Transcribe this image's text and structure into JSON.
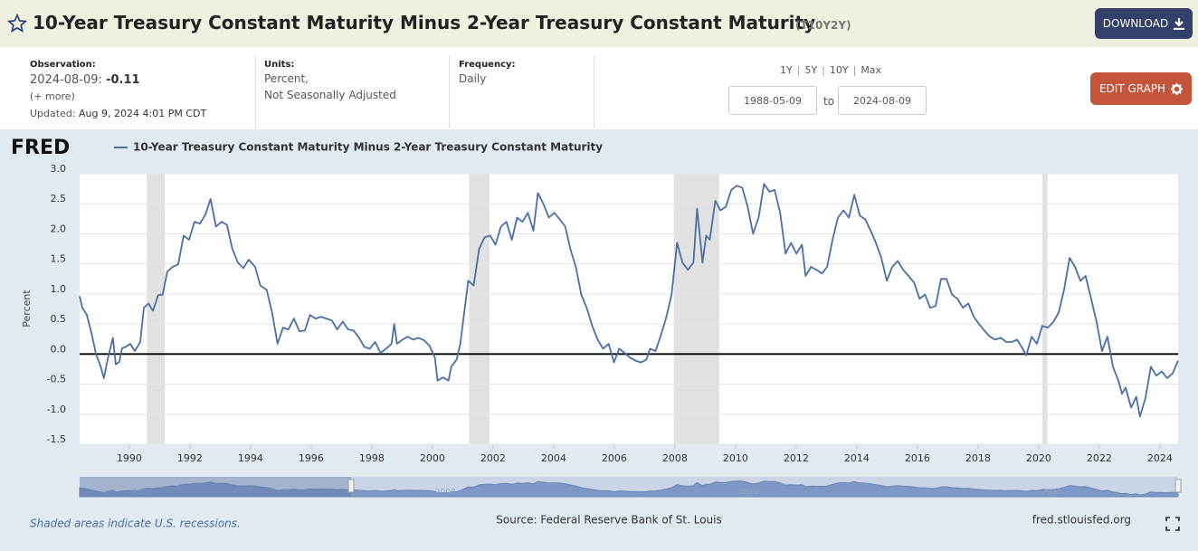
{
  "header": {
    "title": "10-Year Treasury Constant Maturity Minus 2-Year Treasury Constant Maturity",
    "code": "(T10Y2Y)",
    "download": "DOWNLOAD"
  },
  "info": {
    "observation_label": "Observation:",
    "observation_date": "2024-08-09:",
    "observation_value": "-0.11",
    "more": "(+ more)",
    "updated_label": "Updated:",
    "updated": "Aug 9, 2024 4:01 PM CDT",
    "units_label": "Units:",
    "units_1": "Percent,",
    "units_2": "Not Seasonally Adjusted",
    "frequency_label": "Frequency:",
    "frequency": "Daily",
    "ranges": [
      "1Y",
      "5Y",
      "10Y",
      "Max"
    ],
    "start_date": "1988-05-09",
    "to": "to",
    "end_date": "2024-08-09",
    "edit": "EDIT GRAPH"
  },
  "chart_data": {
    "type": "line",
    "logo": "FRED",
    "y_label": "Percent",
    "x": [
      1988.36,
      1988.45,
      1988.6,
      1988.75,
      1988.9,
      1989.05,
      1989.16,
      1989.28,
      1989.46,
      1989.55,
      1989.67,
      1989.76,
      1989.88,
      1990.03,
      1990.18,
      1990.36,
      1990.48,
      1990.63,
      1990.78,
      1990.95,
      1991.1,
      1991.25,
      1991.43,
      1991.61,
      1991.79,
      1991.97,
      1992.15,
      1992.33,
      1992.51,
      1992.68,
      1992.86,
      1993.04,
      1993.22,
      1993.4,
      1993.58,
      1993.76,
      1993.94,
      1994.15,
      1994.32,
      1994.53,
      1994.71,
      1994.89,
      1995.07,
      1995.25,
      1995.43,
      1995.61,
      1995.79,
      1995.96,
      1996.14,
      1996.32,
      1996.5,
      1996.68,
      1996.86,
      1997.04,
      1997.22,
      1997.4,
      1997.58,
      1997.75,
      1997.93,
      1998.11,
      1998.29,
      1998.47,
      1998.65,
      1998.74,
      1998.83,
      1999.01,
      1999.19,
      1999.36,
      1999.54,
      1999.72,
      1999.9,
      2000.08,
      2000.17,
      2000.35,
      2000.53,
      2000.62,
      2000.8,
      2000.92,
      2001.01,
      2001.18,
      2001.36,
      2001.54,
      2001.72,
      2001.9,
      2002.08,
      2002.26,
      2002.44,
      2002.62,
      2002.79,
      2002.97,
      2003.15,
      2003.33,
      2003.48,
      2003.66,
      2003.84,
      2004.02,
      2004.2,
      2004.38,
      2004.55,
      2004.73,
      2004.91,
      2005.09,
      2005.27,
      2005.45,
      2005.63,
      2005.81,
      2005.99,
      2006.16,
      2006.34,
      2006.52,
      2006.7,
      2006.88,
      2007.06,
      2007.18,
      2007.36,
      2007.54,
      2007.72,
      2007.89,
      2008.07,
      2008.25,
      2008.43,
      2008.61,
      2008.73,
      2008.91,
      2009.03,
      2009.15,
      2009.33,
      2009.5,
      2009.68,
      2009.86,
      2010.04,
      2010.22,
      2010.4,
      2010.58,
      2010.76,
      2010.94,
      2011.12,
      2011.29,
      2011.47,
      2011.65,
      2011.83,
      2012.01,
      2012.19,
      2012.31,
      2012.49,
      2012.67,
      2012.85,
      2013.02,
      2013.2,
      2013.38,
      2013.56,
      2013.74,
      2013.92,
      2014.1,
      2014.28,
      2014.46,
      2014.63,
      2014.81,
      2014.99,
      2015.17,
      2015.35,
      2015.53,
      2015.71,
      2015.89,
      2016.07,
      2016.25,
      2016.42,
      2016.6,
      2016.78,
      2016.96,
      2017.14,
      2017.32,
      2017.5,
      2017.68,
      2017.86,
      2018.03,
      2018.21,
      2018.39,
      2018.57,
      2018.75,
      2018.93,
      2019.11,
      2019.29,
      2019.47,
      2019.59,
      2019.77,
      2019.94,
      2020.12,
      2020.3,
      2020.48,
      2020.66,
      2020.84,
      2021.02,
      2021.2,
      2021.38,
      2021.55,
      2021.73,
      2021.91,
      2022.09,
      2022.27,
      2022.45,
      2022.63,
      2022.75,
      2022.87,
      2023.05,
      2023.22,
      2023.34,
      2023.52,
      2023.7,
      2023.88,
      2024.06,
      2024.24,
      2024.42,
      2024.6
    ],
    "series": [
      {
        "name": "10-Year Treasury Constant Maturity Minus 2-Year Treasury Constant Maturity",
        "color": "#4b6ea6",
        "values": [
          0.96,
          0.77,
          0.65,
          0.35,
          0.0,
          -0.2,
          -0.4,
          -0.1,
          0.27,
          -0.17,
          -0.13,
          0.1,
          0.12,
          0.17,
          0.05,
          0.2,
          0.77,
          0.84,
          0.72,
          0.98,
          0.99,
          1.37,
          1.45,
          1.49,
          1.97,
          1.9,
          2.2,
          2.17,
          2.32,
          2.58,
          2.12,
          2.2,
          2.15,
          1.75,
          1.52,
          1.43,
          1.57,
          1.45,
          1.14,
          1.07,
          0.69,
          0.17,
          0.44,
          0.41,
          0.59,
          0.38,
          0.39,
          0.65,
          0.59,
          0.62,
          0.59,
          0.56,
          0.41,
          0.54,
          0.41,
          0.39,
          0.27,
          0.12,
          0.09,
          0.2,
          0.02,
          0.09,
          0.17,
          0.5,
          0.17,
          0.24,
          0.29,
          0.24,
          0.27,
          0.23,
          0.14,
          -0.06,
          -0.44,
          -0.39,
          -0.44,
          -0.21,
          -0.09,
          0.17,
          0.54,
          1.22,
          1.14,
          1.75,
          1.94,
          1.97,
          1.82,
          2.12,
          2.2,
          1.9,
          2.27,
          2.2,
          2.35,
          2.05,
          2.68,
          2.5,
          2.27,
          2.35,
          2.24,
          2.12,
          1.75,
          1.45,
          0.99,
          0.77,
          0.47,
          0.24,
          0.09,
          0.17,
          -0.14,
          0.09,
          0.02,
          -0.06,
          -0.11,
          -0.14,
          -0.09,
          0.09,
          0.05,
          0.32,
          0.62,
          0.99,
          1.85,
          1.52,
          1.4,
          1.52,
          2.42,
          1.52,
          1.97,
          1.9,
          2.55,
          2.39,
          2.45,
          2.73,
          2.8,
          2.77,
          2.45,
          2.0,
          2.27,
          2.83,
          2.7,
          2.73,
          2.35,
          1.67,
          1.85,
          1.67,
          1.82,
          1.3,
          1.45,
          1.4,
          1.34,
          1.45,
          1.9,
          2.27,
          2.39,
          2.27,
          2.65,
          2.3,
          2.24,
          2.05,
          1.85,
          1.6,
          1.22,
          1.45,
          1.55,
          1.4,
          1.3,
          1.19,
          0.92,
          0.99,
          0.77,
          0.8,
          1.25,
          1.25,
          0.99,
          0.92,
          0.77,
          0.84,
          0.62,
          0.5,
          0.39,
          0.29,
          0.24,
          0.27,
          0.2,
          0.2,
          0.24,
          0.09,
          -0.02,
          0.29,
          0.17,
          0.47,
          0.44,
          0.53,
          0.69,
          1.07,
          1.6,
          1.45,
          1.22,
          1.3,
          0.92,
          0.54,
          0.05,
          0.29,
          -0.21,
          -0.44,
          -0.66,
          -0.56,
          -0.89,
          -0.71,
          -1.04,
          -0.74,
          -0.21,
          -0.36,
          -0.29,
          -0.4,
          -0.32,
          -0.11
        ]
      }
    ],
    "recessions": [
      [
        1990.58,
        1991.17
      ],
      [
        2001.21,
        2001.88
      ],
      [
        2007.96,
        2009.46
      ],
      [
        2020.12,
        2020.29
      ]
    ],
    "hline": 0,
    "xlim": [
      1988.36,
      2024.6
    ],
    "ylim": [
      -1.5,
      3.0
    ],
    "xticks": [
      1990,
      1992,
      1994,
      1996,
      1998,
      2000,
      2002,
      2004,
      2006,
      2008,
      2010,
      2012,
      2014,
      2016,
      2018,
      2020,
      2022,
      2024
    ],
    "yticks": [
      {
        "value": 3.0,
        "label": "3.0"
      },
      2.5,
      {
        "value": 2.0,
        "label": "2.0"
      },
      1.5,
      {
        "value": 1.0,
        "label": "1.0"
      },
      0.5,
      {
        "value": 0,
        "label": "0.0"
      },
      -0.5,
      {
        "value": -1.0,
        "label": "-1.0"
      },
      -1.5
    ],
    "navigator_ticks": [
      1990,
      2000,
      2010,
      2020
    ],
    "grid": true
  },
  "footer": {
    "note": "Shaded areas indicate U.S. recessions.",
    "source": "Source: Federal Reserve Bank of St. Louis",
    "site": "fred.stlouisfed.org"
  }
}
